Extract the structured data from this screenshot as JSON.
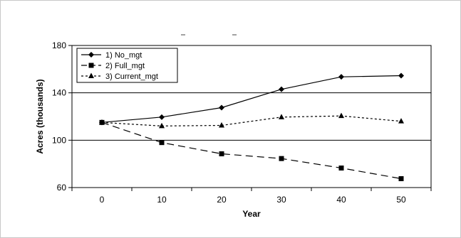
{
  "chart_data": {
    "type": "line",
    "title": "",
    "xlabel": "Year",
    "ylabel": "Acres (thousands)",
    "x": [
      0,
      10,
      20,
      30,
      40,
      50
    ],
    "xlim": [
      -5,
      55
    ],
    "ylim": [
      60,
      180
    ],
    "yticks": [
      60,
      100,
      140,
      180
    ],
    "xticks": [
      0,
      10,
      20,
      30,
      40,
      50
    ],
    "grid": "horizontal",
    "legend_position": "top-left",
    "series": [
      {
        "name": "1) No_mgt",
        "marker": "diamond",
        "dash": "solid",
        "color": "#000000",
        "values": [
          115,
          119.5,
          127.5,
          143,
          153.5,
          154.5
        ]
      },
      {
        "name": "2) Full_mgt",
        "marker": "square",
        "dash": "long-dash",
        "color": "#000000",
        "values": [
          115,
          98,
          88.5,
          84.5,
          76.5,
          67.5
        ]
      },
      {
        "name": "3) Current_mgt",
        "marker": "triangle",
        "dash": "dotted",
        "color": "#000000",
        "values": [
          115,
          112,
          112.5,
          119.5,
          120.5,
          116
        ]
      }
    ]
  }
}
